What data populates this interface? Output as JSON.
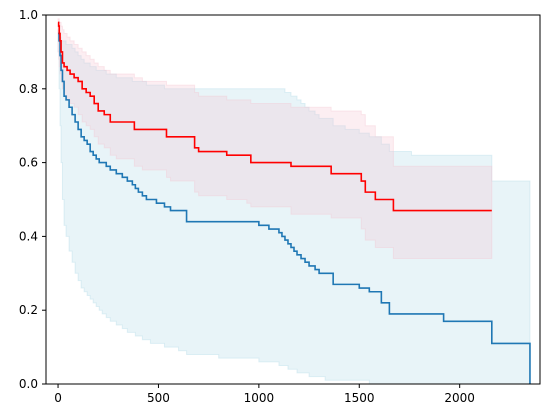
{
  "chart_data": {
    "type": "line",
    "title": "",
    "xlabel": "",
    "ylabel": "",
    "xlim": [
      -60,
      2400
    ],
    "ylim": [
      0,
      1
    ],
    "grid": false,
    "x_ticks": [
      0,
      500,
      1000,
      1500,
      2000
    ],
    "x_tick_labels": [
      "0",
      "500",
      "1000",
      "1500",
      "2000"
    ],
    "y_ticks": [
      0.0,
      0.2,
      0.4,
      0.6,
      0.8,
      1.0
    ],
    "y_tick_labels": [
      "0.0",
      "0.2",
      "0.4",
      "0.6",
      "0.8",
      "1.0"
    ],
    "series": [
      {
        "color": "#1f77b4",
        "ci_color": "#add8e6",
        "x": [
          0,
          5,
          10,
          15,
          22,
          30,
          40,
          55,
          70,
          85,
          100,
          115,
          130,
          145,
          160,
          175,
          190,
          205,
          220,
          240,
          260,
          290,
          320,
          345,
          370,
          385,
          400,
          420,
          440,
          460,
          490,
          530,
          560,
          600,
          640,
          700,
          800,
          900,
          1000,
          1050,
          1100,
          1115,
          1130,
          1145,
          1160,
          1175,
          1190,
          1210,
          1230,
          1250,
          1280,
          1300,
          1330,
          1370,
          1430,
          1500,
          1550,
          1610,
          1650,
          1760,
          1920,
          2160,
          2350
        ],
        "y": [
          0.95,
          0.93,
          0.89,
          0.85,
          0.82,
          0.78,
          0.77,
          0.75,
          0.73,
          0.71,
          0.69,
          0.67,
          0.66,
          0.65,
          0.63,
          0.62,
          0.61,
          0.6,
          0.6,
          0.59,
          0.58,
          0.57,
          0.56,
          0.55,
          0.54,
          0.53,
          0.52,
          0.51,
          0.5,
          0.5,
          0.49,
          0.48,
          0.47,
          0.47,
          0.44,
          0.44,
          0.44,
          0.44,
          0.43,
          0.42,
          0.41,
          0.4,
          0.39,
          0.38,
          0.37,
          0.36,
          0.35,
          0.34,
          0.33,
          0.32,
          0.31,
          0.3,
          0.3,
          0.27,
          0.27,
          0.26,
          0.25,
          0.22,
          0.19,
          0.19,
          0.17,
          0.11,
          0.0
        ],
        "ci_upper": [
          0.96,
          0.95,
          0.94,
          0.93,
          0.93,
          0.93,
          0.92,
          0.92,
          0.91,
          0.9,
          0.89,
          0.88,
          0.87,
          0.87,
          0.86,
          0.86,
          0.85,
          0.85,
          0.85,
          0.84,
          0.84,
          0.83,
          0.83,
          0.83,
          0.82,
          0.82,
          0.82,
          0.82,
          0.81,
          0.81,
          0.81,
          0.8,
          0.8,
          0.8,
          0.8,
          0.8,
          0.8,
          0.8,
          0.8,
          0.8,
          0.8,
          0.8,
          0.79,
          0.79,
          0.78,
          0.78,
          0.77,
          0.76,
          0.75,
          0.74,
          0.73,
          0.72,
          0.72,
          0.7,
          0.69,
          0.68,
          0.67,
          0.65,
          0.63,
          0.62,
          0.62,
          0.55,
          0.55
        ],
        "ci_lower": [
          0.9,
          0.8,
          0.7,
          0.6,
          0.5,
          0.43,
          0.4,
          0.36,
          0.33,
          0.3,
          0.28,
          0.26,
          0.25,
          0.24,
          0.23,
          0.22,
          0.21,
          0.2,
          0.19,
          0.18,
          0.17,
          0.16,
          0.15,
          0.14,
          0.14,
          0.13,
          0.13,
          0.12,
          0.12,
          0.11,
          0.11,
          0.1,
          0.1,
          0.09,
          0.08,
          0.08,
          0.07,
          0.07,
          0.06,
          0.06,
          0.05,
          0.05,
          0.05,
          0.04,
          0.04,
          0.04,
          0.03,
          0.03,
          0.03,
          0.02,
          0.02,
          0.02,
          0.01,
          0.01,
          0.01,
          0.01,
          0.0,
          0.0,
          0.0,
          0.0,
          0.0,
          0.0,
          0.0
        ]
      },
      {
        "color": "#ff0000",
        "ci_color": "#f4c2cf",
        "x": [
          0,
          3,
          6,
          10,
          15,
          22,
          30,
          45,
          60,
          80,
          100,
          120,
          140,
          160,
          180,
          200,
          230,
          260,
          290,
          380,
          420,
          540,
          560,
          680,
          700,
          840,
          940,
          960,
          1080,
          1160,
          1360,
          1510,
          1530,
          1580,
          1670,
          2160
        ],
        "y": [
          0.98,
          0.97,
          0.95,
          0.93,
          0.9,
          0.87,
          0.86,
          0.85,
          0.84,
          0.83,
          0.82,
          0.8,
          0.79,
          0.78,
          0.76,
          0.74,
          0.73,
          0.71,
          0.71,
          0.69,
          0.69,
          0.67,
          0.67,
          0.64,
          0.63,
          0.62,
          0.62,
          0.6,
          0.6,
          0.59,
          0.57,
          0.55,
          0.52,
          0.5,
          0.47,
          0.47
        ],
        "ci_upper": [
          0.99,
          0.99,
          0.98,
          0.98,
          0.97,
          0.96,
          0.95,
          0.94,
          0.93,
          0.92,
          0.91,
          0.9,
          0.89,
          0.88,
          0.87,
          0.86,
          0.85,
          0.84,
          0.84,
          0.83,
          0.82,
          0.81,
          0.81,
          0.79,
          0.78,
          0.77,
          0.77,
          0.76,
          0.76,
          0.75,
          0.74,
          0.73,
          0.7,
          0.67,
          0.59,
          0.59
        ],
        "ci_lower": [
          0.9,
          0.88,
          0.86,
          0.84,
          0.82,
          0.8,
          0.78,
          0.77,
          0.76,
          0.75,
          0.73,
          0.71,
          0.7,
          0.69,
          0.67,
          0.65,
          0.64,
          0.62,
          0.61,
          0.59,
          0.58,
          0.56,
          0.55,
          0.52,
          0.51,
          0.5,
          0.49,
          0.48,
          0.48,
          0.46,
          0.45,
          0.42,
          0.39,
          0.37,
          0.34,
          0.34
        ]
      }
    ]
  }
}
